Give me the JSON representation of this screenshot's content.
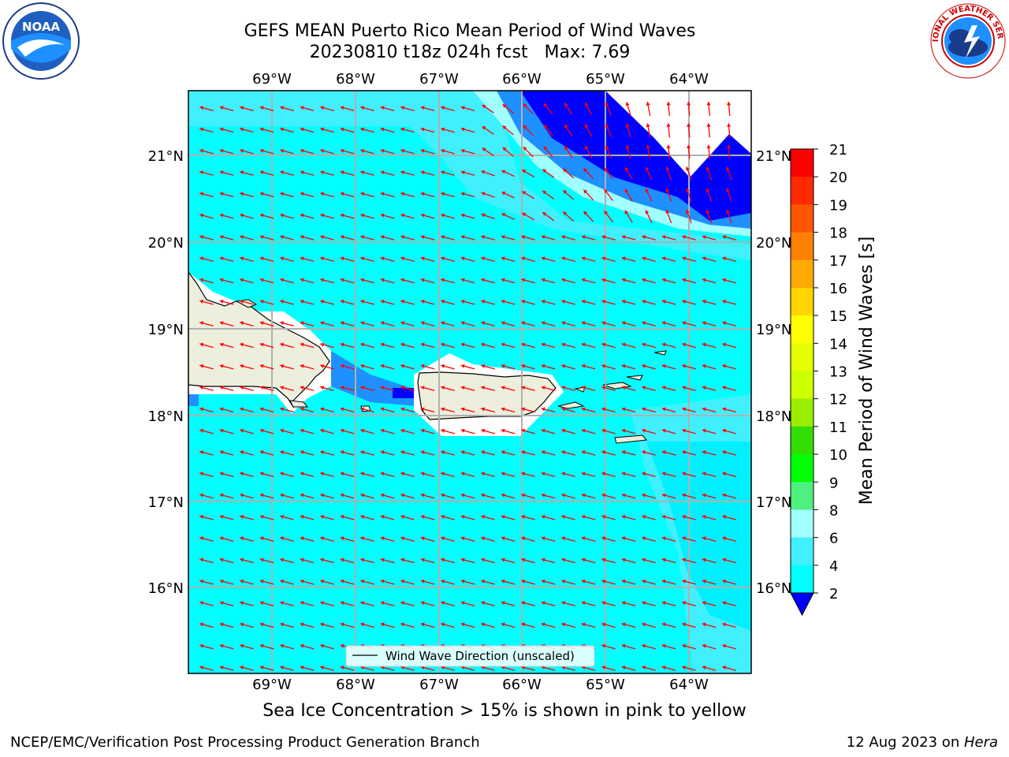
{
  "header": {
    "title_line1": "GEFS MEAN Puerto Rico Mean Period of Wind Waves",
    "title_line2": "20230810 t18z 024h fcst   Max: 7.69"
  },
  "logos": {
    "left": {
      "name": "noaa-logo",
      "text": "NOAA",
      "ring_text": "NATIONAL OCEANIC AND ATMOSPHERIC ADMINISTRATION · U.S. DEPARTMENT OF COMMERCE"
    },
    "right": {
      "name": "nws-logo",
      "ring_text": "NATIONAL WEATHER SERVICE"
    }
  },
  "map": {
    "lon_labels": [
      "69°W",
      "68°W",
      "67°W",
      "66°W",
      "65°W",
      "64°W"
    ],
    "lat_labels": [
      "21°N",
      "20°N",
      "19°N",
      "18°N",
      "17°N",
      "16°N"
    ],
    "legend_label": "Wind Wave Direction (unscaled)",
    "colors": {
      "ocean_light": "#00ffff",
      "ocean_mid": "#40f0ff",
      "ocean_pale": "#a0ffff",
      "deep_blue": "#0000ff",
      "mid_blue": "#1e90ff",
      "land": "#eeeedd",
      "arrow": "#ff0000",
      "grid": "#b0b0b0"
    }
  },
  "colorbar": {
    "label": "Mean Period of Wind Waves [s]",
    "ticks": [
      "21",
      "20",
      "19",
      "18",
      "17",
      "16",
      "15",
      "14",
      "13",
      "12",
      "11",
      "10",
      "9",
      "8",
      "6",
      "4",
      "2"
    ],
    "colors": [
      "#ff0000",
      "#ff2a00",
      "#ff5500",
      "#ff8000",
      "#ffaa00",
      "#ffd400",
      "#ffff00",
      "#e6ff00",
      "#ccff00",
      "#99ee00",
      "#33dd00",
      "#00ff00",
      "#50f080",
      "#a0ffff",
      "#40f0ff",
      "#00ffff",
      "#1e90ff"
    ],
    "under_color": "#0000ff"
  },
  "note": "Sea Ice Concentration > 15% is shown in pink to yellow",
  "footer": {
    "left": "NCEP/EMC/Verification Post Processing Product Generation Branch",
    "right_prefix": "12 Aug 2023 on ",
    "right_host": "Hera"
  }
}
